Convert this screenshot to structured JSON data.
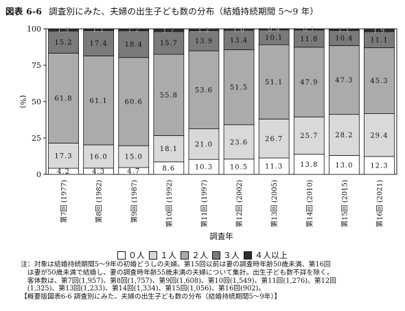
{
  "title": {
    "number": "図表 6-6",
    "text": "調査別にみた、夫婦の出生子ども数の分布（結婚持続期間 5～9 年）"
  },
  "chart_data": {
    "type": "bar",
    "stacked": true,
    "categories": [
      "第7回 (1977)",
      "第8回 (1982)",
      "第9回 (1987)",
      "第10回 (1992)",
      "第11回 (1997)",
      "第12回 (2002)",
      "第13回 (2005)",
      "第14回 (2010)",
      "第15回 (2015)",
      "第16回 (2021)"
    ],
    "series": [
      {
        "name": "０人",
        "color": "#ffffff",
        "values": [
          4.2,
          4.3,
          4.7,
          8.6,
          10.3,
          10.5,
          11.3,
          13.8,
          13.0,
          12.3
        ],
        "labels": [
          "4.2",
          "4.3",
          "4.7",
          "8.6",
          "10.3",
          "10.5",
          "11.3",
          "13.8",
          "13.0",
          "12.3"
        ]
      },
      {
        "name": "１人",
        "color": "#d9d9d9",
        "values": [
          17.3,
          16.0,
          15.0,
          18.1,
          21.0,
          23.6,
          26.7,
          25.7,
          28.2,
          29.4
        ],
        "labels": [
          "17.3",
          "16.0",
          "15.0",
          "18.1",
          "21.0",
          "23.6",
          "26.7",
          "25.7",
          "28.2",
          "29.4"
        ]
      },
      {
        "name": "２人",
        "color": "#ababab",
        "values": [
          61.8,
          61.1,
          60.6,
          55.8,
          53.6,
          51.5,
          51.1,
          47.9,
          47.3,
          45.3
        ],
        "labels": [
          "61.8",
          "61.1",
          "60.6",
          "55.8",
          "53.6",
          "51.5",
          "51.1",
          "47.9",
          "47.3",
          "45.3"
        ]
      },
      {
        "name": "３人",
        "color": "#7a7a7a",
        "values": [
          15.2,
          17.4,
          18.4,
          15.7,
          13.9,
          13.4,
          10.1,
          11.8,
          10.4,
          11.1
        ],
        "labels": [
          "15.2",
          "17.4",
          "18.4",
          "15.7",
          "13.9",
          "13.4",
          "10.1",
          "11.8",
          "10.4",
          "11.1"
        ]
      },
      {
        "name": "４人以上",
        "color": "#2e2e2e",
        "values": [
          1.5,
          1.1,
          1.2,
          1.7,
          1.2,
          1.0,
          0.9,
          0.7,
          1.1,
          1.9
        ],
        "labels": [
          "1.5",
          "1.1",
          "1.2",
          "1.7",
          "1.2",
          "1.0",
          "0.9",
          "0.7",
          "1.1",
          "1.9"
        ]
      }
    ],
    "ylabel": "(%)",
    "xlabel": "調査年",
    "ylim": [
      0,
      100
    ],
    "yticks": [
      0,
      25,
      50,
      75,
      100
    ],
    "grid": false,
    "legend": "bottom"
  },
  "notes": [
    "注：対象は結婚持続期間5～9年の初婚どうしの夫婦。第15回以前は妻の調査時年齢50歳未満、第16回",
    "　は妻が50歳未満で結婚し、妻の調査時年齢55歳未満の夫婦について集計。出生子ども数不詳を除く。",
    "　客体数は、第7回(1,957)、第8回(1,757)、第9回(1,608)、第10回(1,549)、第11回(1,276)、第12回",
    "　(1,325)、第13回(1,233)、第14回(1,334)、第15回(1,056)、第16回(902)。",
    "【概要版図表6-6  調査別にみた、夫婦の出生子ども数の分布（結婚持続期間5～9年）】"
  ]
}
